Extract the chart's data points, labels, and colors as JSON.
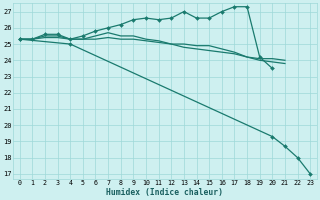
{
  "xlabel": "Humidex (Indice chaleur)",
  "bg_color": "#cef0f0",
  "grid_color": "#9ed8d8",
  "line_color": "#1a7a6e",
  "xlim": [
    -0.5,
    23.5
  ],
  "ylim": [
    16.7,
    27.5
  ],
  "yticks": [
    17,
    18,
    19,
    20,
    21,
    22,
    23,
    24,
    25,
    26,
    27
  ],
  "xticks": [
    0,
    1,
    2,
    3,
    4,
    5,
    6,
    7,
    8,
    9,
    10,
    11,
    12,
    13,
    14,
    15,
    16,
    17,
    18,
    19,
    20,
    21,
    22,
    23
  ],
  "series": [
    {
      "x": [
        0,
        1,
        2,
        3,
        4,
        5,
        6,
        7,
        8,
        9,
        10,
        11,
        12,
        13,
        14,
        15,
        16,
        17,
        18,
        19,
        20
      ],
      "y": [
        25.3,
        25.3,
        25.6,
        25.6,
        25.3,
        25.5,
        25.8,
        26.0,
        26.2,
        26.5,
        26.6,
        26.5,
        26.6,
        27.0,
        26.6,
        26.6,
        27.0,
        27.3,
        27.3,
        24.2,
        23.5
      ],
      "marker": "D",
      "markersize": 2.0,
      "lw": 0.9
    },
    {
      "x": [
        0,
        1,
        2,
        3,
        4,
        5,
        6,
        7,
        8,
        9,
        10,
        11,
        12,
        13,
        14,
        15,
        16,
        17,
        18,
        19,
        20,
        21
      ],
      "y": [
        25.3,
        25.3,
        25.5,
        25.5,
        25.3,
        25.3,
        25.3,
        25.4,
        25.3,
        25.3,
        25.2,
        25.1,
        25.0,
        25.0,
        24.9,
        24.9,
        24.7,
        24.5,
        24.2,
        24.1,
        24.1,
        24.0
      ],
      "marker": null,
      "markersize": 0,
      "lw": 0.9
    },
    {
      "x": [
        0,
        1,
        2,
        3,
        4,
        5,
        6,
        7,
        8,
        9,
        10,
        11,
        12,
        13,
        14,
        15,
        16,
        17,
        18,
        19,
        20,
        21
      ],
      "y": [
        25.3,
        25.3,
        25.4,
        25.4,
        25.3,
        25.3,
        25.5,
        25.7,
        25.5,
        25.5,
        25.3,
        25.2,
        25.0,
        24.8,
        24.7,
        24.6,
        24.5,
        24.4,
        24.2,
        24.0,
        23.9,
        23.8
      ],
      "marker": null,
      "markersize": 0,
      "lw": 0.9
    },
    {
      "x": [
        0,
        4,
        20,
        21,
        22,
        23
      ],
      "y": [
        25.3,
        25.0,
        19.3,
        18.7,
        18.0,
        17.0
      ],
      "marker": "D",
      "markersize": 2.0,
      "lw": 0.9
    }
  ]
}
